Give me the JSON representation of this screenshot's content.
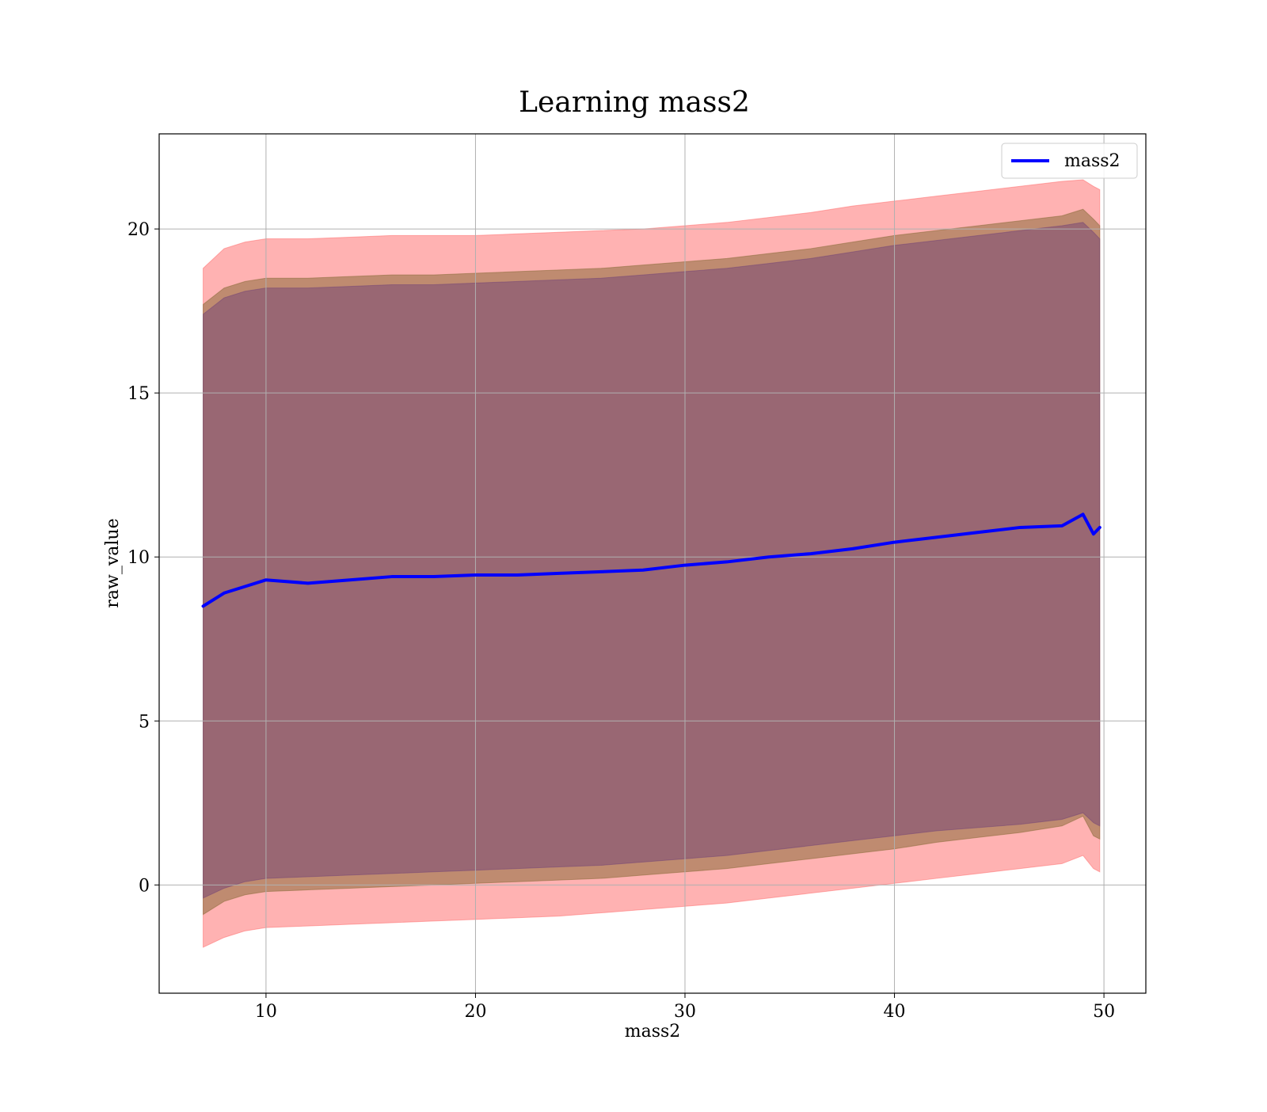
{
  "chart_data": {
    "type": "area",
    "title": "Learning mass2",
    "xlabel": "mass2",
    "ylabel": "raw_value",
    "xlim": [
      4.9,
      52.0
    ],
    "ylim": [
      -3.3,
      22.9
    ],
    "xticks": [
      10,
      20,
      30,
      40,
      50
    ],
    "yticks": [
      0,
      5,
      10,
      15,
      20
    ],
    "xtick_labels": [
      "10",
      "20",
      "30",
      "40",
      "50"
    ],
    "ytick_labels": [
      "0",
      "5",
      "10",
      "15",
      "20"
    ],
    "grid": true,
    "legend": {
      "position": "top-right",
      "entries": [
        "mass2"
      ]
    },
    "x": [
      7,
      8,
      9,
      10,
      12,
      14,
      16,
      18,
      20,
      22,
      24,
      26,
      28,
      30,
      32,
      34,
      36,
      38,
      40,
      42,
      44,
      46,
      48,
      49,
      49.5,
      49.8
    ],
    "series": [
      {
        "name": "mass2",
        "kind": "line",
        "color": "#0000ff",
        "values": [
          8.5,
          8.9,
          9.1,
          9.3,
          9.2,
          9.3,
          9.4,
          9.4,
          9.45,
          9.45,
          9.5,
          9.55,
          9.6,
          9.75,
          9.85,
          10.0,
          10.1,
          10.25,
          10.45,
          10.6,
          10.75,
          10.9,
          10.95,
          11.3,
          10.7,
          10.9
        ]
      },
      {
        "kind": "band",
        "color": "#ff6666",
        "opacity": 0.5,
        "upper": [
          18.8,
          19.4,
          19.6,
          19.7,
          19.7,
          19.75,
          19.8,
          19.8,
          19.8,
          19.85,
          19.9,
          19.95,
          20.0,
          20.1,
          20.2,
          20.35,
          20.5,
          20.7,
          20.85,
          21.0,
          21.15,
          21.3,
          21.45,
          21.5,
          21.3,
          21.2
        ],
        "lower": [
          -1.9,
          -1.6,
          -1.4,
          -1.3,
          -1.25,
          -1.2,
          -1.15,
          -1.1,
          -1.05,
          -1.0,
          -0.95,
          -0.85,
          -0.75,
          -0.65,
          -0.55,
          -0.4,
          -0.25,
          -0.1,
          0.05,
          0.2,
          0.35,
          0.5,
          0.65,
          0.9,
          0.5,
          0.4
        ]
      },
      {
        "kind": "band",
        "color": "#8b6b3a",
        "opacity": 0.55,
        "upper": [
          17.7,
          18.2,
          18.4,
          18.5,
          18.5,
          18.55,
          18.6,
          18.6,
          18.65,
          18.7,
          18.75,
          18.8,
          18.9,
          19.0,
          19.1,
          19.25,
          19.4,
          19.6,
          19.8,
          19.95,
          20.1,
          20.25,
          20.4,
          20.6,
          20.3,
          20.1
        ],
        "lower": [
          -0.9,
          -0.5,
          -0.3,
          -0.2,
          -0.15,
          -0.1,
          -0.05,
          0.0,
          0.05,
          0.1,
          0.15,
          0.2,
          0.3,
          0.4,
          0.5,
          0.65,
          0.8,
          0.95,
          1.1,
          1.3,
          1.45,
          1.6,
          1.8,
          2.1,
          1.5,
          1.4
        ]
      },
      {
        "kind": "band",
        "color": "#6b3c78",
        "opacity": 0.45,
        "upper": [
          17.4,
          17.9,
          18.1,
          18.2,
          18.2,
          18.25,
          18.3,
          18.3,
          18.35,
          18.4,
          18.45,
          18.5,
          18.6,
          18.7,
          18.8,
          18.95,
          19.1,
          19.3,
          19.5,
          19.65,
          19.8,
          19.95,
          20.1,
          20.2,
          19.9,
          19.7
        ],
        "lower": [
          -0.4,
          -0.1,
          0.1,
          0.2,
          0.25,
          0.3,
          0.35,
          0.4,
          0.45,
          0.5,
          0.55,
          0.6,
          0.7,
          0.8,
          0.9,
          1.05,
          1.2,
          1.35,
          1.5,
          1.65,
          1.75,
          1.85,
          2.0,
          2.2,
          1.9,
          1.8
        ]
      }
    ]
  }
}
